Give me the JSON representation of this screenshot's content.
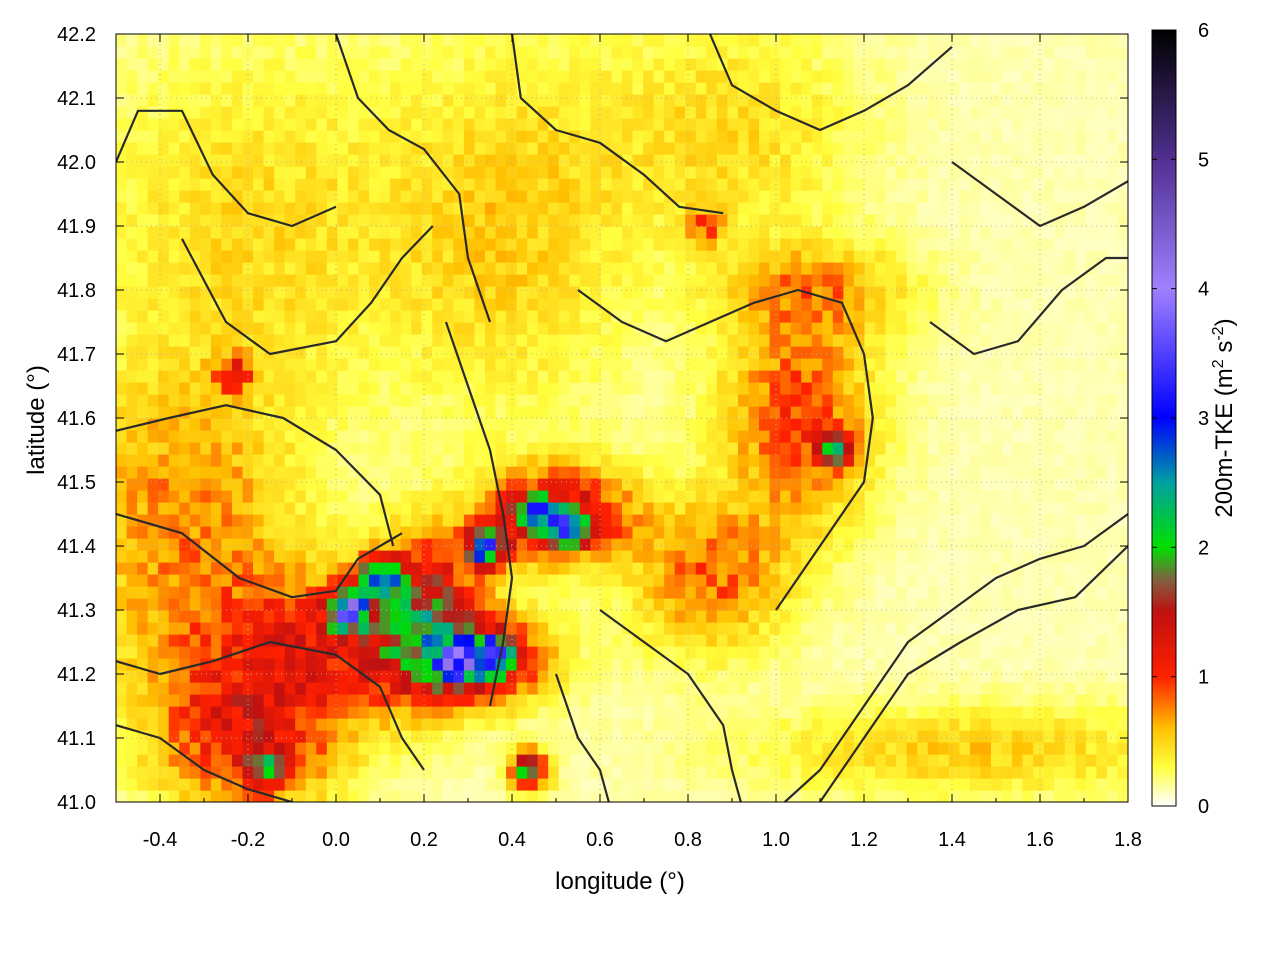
{
  "chart_data": {
    "type": "heatmap",
    "title": "",
    "xlabel": "longitude (°)",
    "ylabel": "latitude (°)",
    "xlim": [
      -0.5,
      1.8
    ],
    "ylim": [
      41.0,
      42.2
    ],
    "xticks": [
      -0.4,
      -0.2,
      0.0,
      0.2,
      0.4,
      0.6,
      0.8,
      1.0,
      1.2,
      1.4,
      1.6,
      1.8
    ],
    "xtick_labels": [
      "-0.4",
      "-0.2",
      "0.0",
      "0.2",
      "0.4",
      "0.6",
      "0.8",
      "1.0",
      "1.2",
      "1.4",
      "1.6",
      "1.8"
    ],
    "yticks": [
      41.0,
      41.1,
      41.2,
      41.3,
      41.4,
      41.5,
      41.6,
      41.7,
      41.8,
      41.9,
      42.0,
      42.1,
      42.2
    ],
    "ytick_labels": [
      "41.0",
      "41.1",
      "41.2",
      "41.3",
      "41.4",
      "41.5",
      "41.6",
      "41.7",
      "41.8",
      "41.9",
      "42.0",
      "42.1",
      "42.2"
    ],
    "grid": true,
    "colorbar": {
      "label_main": "200m-TKE (m",
      "label_sup1": "2",
      "label_mid": " s",
      "label_sup2": "-2",
      "label_end": ")",
      "range": [
        0,
        6
      ],
      "ticks": [
        0,
        1,
        2,
        3,
        4,
        5,
        6
      ],
      "tick_labels": [
        "0",
        "1",
        "2",
        "3",
        "4",
        "5",
        "6"
      ],
      "stops": [
        {
          "v": 0.0,
          "color": "#ffffff"
        },
        {
          "v": 0.3,
          "color": "#ffff40"
        },
        {
          "v": 0.6,
          "color": "#ffc000"
        },
        {
          "v": 1.0,
          "color": "#ff2000"
        },
        {
          "v": 1.5,
          "color": "#c01010"
        },
        {
          "v": 1.75,
          "color": "#806040"
        },
        {
          "v": 2.0,
          "color": "#00e000"
        },
        {
          "v": 2.5,
          "color": "#00a0a0"
        },
        {
          "v": 3.0,
          "color": "#0000ff"
        },
        {
          "v": 4.0,
          "color": "#a080ff"
        },
        {
          "v": 5.0,
          "color": "#503090"
        },
        {
          "v": 6.0,
          "color": "#000000"
        }
      ]
    },
    "field_features": [
      {
        "name": "band-southwest",
        "lon": 0.0,
        "lat": 41.25,
        "slon": 0.25,
        "slat": 0.08,
        "v": 0.9
      },
      {
        "name": "band-west",
        "lon": -0.35,
        "lat": 41.45,
        "slon": 0.18,
        "slat": 0.15,
        "v": 0.6
      },
      {
        "name": "center-core",
        "lon": 0.2,
        "lat": 41.3,
        "slon": 0.08,
        "slat": 0.08,
        "v": 1.2
      },
      {
        "name": "center-east",
        "lon": 0.5,
        "lat": 41.45,
        "slon": 0.12,
        "slat": 0.05,
        "v": 1.3
      },
      {
        "name": "ridge-south",
        "lon": 0.32,
        "lat": 41.22,
        "slon": 0.1,
        "slat": 0.04,
        "v": 1.4
      },
      {
        "name": "north-west",
        "lon": -0.2,
        "lat": 41.9,
        "slon": 0.25,
        "slat": 0.2,
        "v": 0.35
      },
      {
        "name": "north-center",
        "lon": 0.4,
        "lat": 41.9,
        "slon": 0.2,
        "slat": 0.2,
        "v": 0.4
      },
      {
        "name": "north-east",
        "lon": 0.9,
        "lat": 42.05,
        "slon": 0.2,
        "slat": 0.12,
        "v": 0.35
      },
      {
        "name": "east-mid",
        "lon": 1.05,
        "lat": 41.6,
        "slon": 0.12,
        "slat": 0.12,
        "v": 0.8
      },
      {
        "name": "east-south",
        "lon": 0.85,
        "lat": 41.35,
        "slon": 0.12,
        "slat": 0.08,
        "v": 0.7
      },
      {
        "name": "coast-strip",
        "lon": 1.45,
        "lat": 41.08,
        "slon": 0.35,
        "slat": 0.05,
        "v": 0.4
      },
      {
        "name": "southwest-corner",
        "lon": -0.2,
        "lat": 41.1,
        "slon": 0.15,
        "slat": 0.08,
        "v": 1.0
      },
      {
        "name": "arc-north",
        "lon": 1.1,
        "lat": 41.8,
        "slon": 0.15,
        "slat": 0.05,
        "v": 0.5
      }
    ],
    "hotspots": [
      {
        "lon": 0.03,
        "lat": 41.3,
        "v": 3.8
      },
      {
        "lon": 0.1,
        "lat": 41.35,
        "v": 3.3
      },
      {
        "lon": 0.28,
        "lat": 41.22,
        "v": 2.6
      },
      {
        "lon": 0.36,
        "lat": 41.23,
        "v": 3.0
      },
      {
        "lon": 0.45,
        "lat": 41.45,
        "v": 2.4
      },
      {
        "lon": 0.52,
        "lat": 41.43,
        "v": 3.2
      },
      {
        "lon": 0.34,
        "lat": 41.4,
        "v": 3.6
      },
      {
        "lon": -0.16,
        "lat": 41.05,
        "v": 2.1
      },
      {
        "lon": 0.44,
        "lat": 41.05,
        "v": 2.8
      },
      {
        "lon": 1.14,
        "lat": 41.55,
        "v": 2.4
      },
      {
        "lon": -0.23,
        "lat": 41.67,
        "v": 1.8
      },
      {
        "lon": 0.84,
        "lat": 41.9,
        "v": 1.6
      }
    ],
    "contours": [
      [
        [
          -0.5,
          41.58
        ],
        [
          -0.38,
          41.6
        ],
        [
          -0.25,
          41.62
        ],
        [
          -0.12,
          41.6
        ],
        [
          0.0,
          41.55
        ],
        [
          0.1,
          41.48
        ],
        [
          0.13,
          41.4
        ]
      ],
      [
        [
          -0.5,
          41.45
        ],
        [
          -0.35,
          41.42
        ],
        [
          -0.22,
          41.35
        ],
        [
          -0.1,
          41.32
        ],
        [
          0.0,
          41.33
        ],
        [
          0.05,
          41.38
        ],
        [
          0.15,
          41.42
        ]
      ],
      [
        [
          -0.5,
          41.22
        ],
        [
          -0.4,
          41.2
        ],
        [
          -0.28,
          41.22
        ],
        [
          -0.15,
          41.25
        ],
        [
          0.0,
          41.23
        ],
        [
          0.1,
          41.18
        ],
        [
          0.15,
          41.1
        ],
        [
          0.2,
          41.05
        ]
      ],
      [
        [
          -0.5,
          41.12
        ],
        [
          -0.4,
          41.1
        ],
        [
          -0.3,
          41.05
        ],
        [
          -0.2,
          41.02
        ],
        [
          -0.1,
          41.0
        ]
      ],
      [
        [
          -0.5,
          42.0
        ],
        [
          -0.45,
          42.08
        ],
        [
          -0.35,
          42.08
        ],
        [
          -0.28,
          41.98
        ],
        [
          -0.2,
          41.92
        ],
        [
          -0.1,
          41.9
        ],
        [
          0.0,
          41.93
        ]
      ],
      [
        [
          -0.35,
          41.88
        ],
        [
          -0.25,
          41.75
        ],
        [
          -0.15,
          41.7
        ],
        [
          0.0,
          41.72
        ],
        [
          0.08,
          41.78
        ],
        [
          0.15,
          41.85
        ],
        [
          0.22,
          41.9
        ]
      ],
      [
        [
          0.0,
          42.2
        ],
        [
          0.05,
          42.1
        ],
        [
          0.12,
          42.05
        ],
        [
          0.2,
          42.02
        ],
        [
          0.28,
          41.95
        ],
        [
          0.3,
          41.85
        ],
        [
          0.35,
          41.75
        ]
      ],
      [
        [
          0.25,
          41.75
        ],
        [
          0.3,
          41.65
        ],
        [
          0.35,
          41.55
        ],
        [
          0.38,
          41.45
        ],
        [
          0.4,
          41.35
        ],
        [
          0.38,
          41.25
        ],
        [
          0.35,
          41.15
        ]
      ],
      [
        [
          0.4,
          42.2
        ],
        [
          0.42,
          42.1
        ],
        [
          0.5,
          42.05
        ],
        [
          0.6,
          42.03
        ],
        [
          0.7,
          41.98
        ],
        [
          0.78,
          41.93
        ],
        [
          0.88,
          41.92
        ]
      ],
      [
        [
          0.55,
          41.8
        ],
        [
          0.65,
          41.75
        ],
        [
          0.75,
          41.72
        ],
        [
          0.85,
          41.75
        ],
        [
          0.95,
          41.78
        ],
        [
          1.05,
          41.8
        ],
        [
          1.15,
          41.78
        ],
        [
          1.2,
          41.7
        ]
      ],
      [
        [
          0.85,
          42.2
        ],
        [
          0.9,
          42.12
        ],
        [
          1.0,
          42.08
        ],
        [
          1.1,
          42.05
        ],
        [
          1.2,
          42.08
        ],
        [
          1.3,
          42.12
        ],
        [
          1.4,
          42.18
        ]
      ],
      [
        [
          1.2,
          41.7
        ],
        [
          1.22,
          41.6
        ],
        [
          1.2,
          41.5
        ],
        [
          1.15,
          41.45
        ],
        [
          1.1,
          41.4
        ],
        [
          1.05,
          41.35
        ],
        [
          1.0,
          41.3
        ]
      ],
      [
        [
          1.8,
          41.45
        ],
        [
          1.7,
          41.4
        ],
        [
          1.6,
          41.38
        ],
        [
          1.5,
          41.35
        ],
        [
          1.4,
          41.3
        ],
        [
          1.3,
          41.25
        ],
        [
          1.2,
          41.15
        ],
        [
          1.1,
          41.05
        ],
        [
          1.02,
          41.0
        ]
      ],
      [
        [
          1.8,
          41.4
        ],
        [
          1.68,
          41.32
        ],
        [
          1.55,
          41.3
        ],
        [
          1.42,
          41.25
        ],
        [
          1.3,
          41.2
        ],
        [
          1.2,
          41.1
        ],
        [
          1.1,
          41.0
        ]
      ],
      [
        [
          1.35,
          41.75
        ],
        [
          1.45,
          41.7
        ],
        [
          1.55,
          41.72
        ],
        [
          1.65,
          41.8
        ],
        [
          1.75,
          41.85
        ],
        [
          1.8,
          41.85
        ]
      ],
      [
        [
          1.4,
          42.0
        ],
        [
          1.5,
          41.95
        ],
        [
          1.6,
          41.9
        ],
        [
          1.7,
          41.93
        ],
        [
          1.8,
          41.97
        ]
      ],
      [
        [
          0.6,
          41.3
        ],
        [
          0.7,
          41.25
        ],
        [
          0.8,
          41.2
        ],
        [
          0.88,
          41.12
        ],
        [
          0.9,
          41.05
        ],
        [
          0.92,
          41.0
        ]
      ],
      [
        [
          0.5,
          41.2
        ],
        [
          0.55,
          41.1
        ],
        [
          0.6,
          41.05
        ],
        [
          0.62,
          41.0
        ]
      ]
    ]
  }
}
